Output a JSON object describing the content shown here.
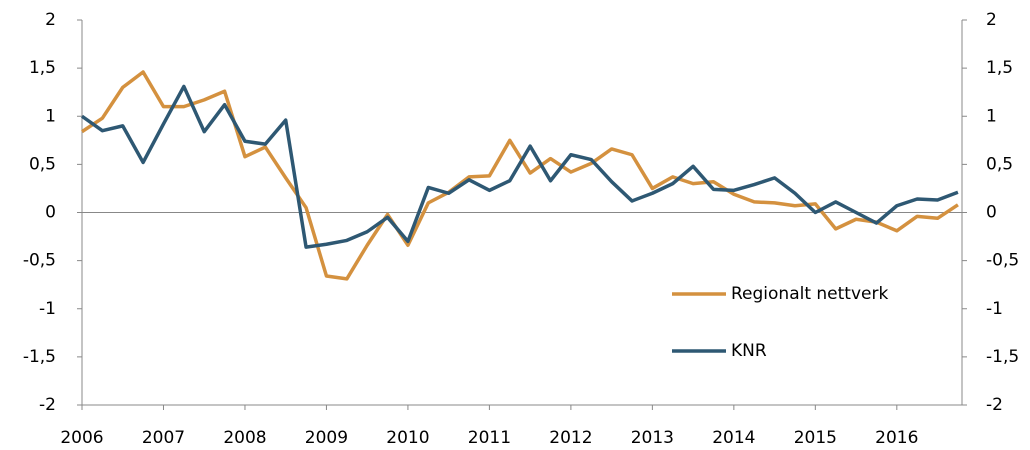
{
  "chart_data": {
    "type": "line",
    "x": [
      2006,
      2006.25,
      2006.5,
      2006.75,
      2007,
      2007.25,
      2007.5,
      2007.75,
      2008,
      2008.25,
      2008.5,
      2008.75,
      2009,
      2009.25,
      2009.5,
      2009.75,
      2010,
      2010.25,
      2010.5,
      2010.75,
      2011,
      2011.25,
      2011.5,
      2011.75,
      2012,
      2012.25,
      2012.5,
      2012.75,
      2013,
      2013.25,
      2013.5,
      2013.75,
      2014,
      2014.25,
      2014.5,
      2014.75,
      2015,
      2015.25,
      2015.5,
      2015.75,
      2016,
      2016.25,
      2016.5,
      2016.75
    ],
    "series": [
      {
        "name": "Regionalt nettverk",
        "color": "#d4913f",
        "values": [
          0.84,
          0.98,
          1.3,
          1.46,
          1.1,
          1.1,
          1.17,
          1.26,
          0.58,
          0.68,
          0.36,
          0.05,
          -0.66,
          -0.69,
          -0.34,
          -0.02,
          -0.34,
          0.1,
          0.21,
          0.37,
          0.38,
          0.75,
          0.41,
          0.56,
          0.42,
          0.51,
          0.66,
          0.6,
          0.25,
          0.37,
          0.3,
          0.32,
          0.19,
          0.11,
          0.1,
          0.07,
          0.09,
          -0.17,
          -0.07,
          -0.1,
          -0.19,
          -0.04,
          -0.06,
          0.08
        ]
      },
      {
        "name": "KNR",
        "color": "#2e5873",
        "values": [
          1.0,
          0.85,
          0.9,
          0.52,
          0.92,
          1.31,
          0.84,
          1.12,
          0.74,
          0.71,
          0.96,
          -0.36,
          -0.33,
          -0.29,
          -0.2,
          -0.05,
          -0.3,
          0.26,
          0.2,
          0.34,
          0.23,
          0.33,
          0.69,
          0.33,
          0.6,
          0.55,
          0.32,
          0.12,
          0.2,
          0.3,
          0.48,
          0.24,
          0.23,
          0.29,
          0.36,
          0.2,
          0.0,
          0.11,
          0.0,
          -0.11,
          0.07,
          0.14,
          0.13,
          0.21
        ]
      }
    ],
    "xlim": [
      2006,
      2016.8
    ],
    "xticks": [
      2006,
      2007,
      2008,
      2009,
      2010,
      2011,
      2012,
      2013,
      2014,
      2015,
      2016
    ],
    "ylim": [
      -2,
      2
    ],
    "yticks": [
      -2,
      {
        "value": -1.5,
        "label": "-1,5"
      },
      -1,
      {
        "value": -0.5,
        "label": "-0,5"
      },
      0,
      {
        "value": 0.5,
        "label": "0,5"
      },
      1,
      {
        "value": 1.5,
        "label": "1,5"
      },
      2
    ],
    "y2lim": [
      -2,
      2
    ],
    "y2ticks": [
      -2,
      {
        "value": -1.5,
        "label": "-1,5"
      },
      -1,
      {
        "value": -0.5,
        "label": "-0,5"
      },
      0,
      {
        "value": 0.5,
        "label": "0,5"
      },
      1,
      {
        "value": 1.5,
        "label": "1,5"
      },
      2
    ]
  }
}
